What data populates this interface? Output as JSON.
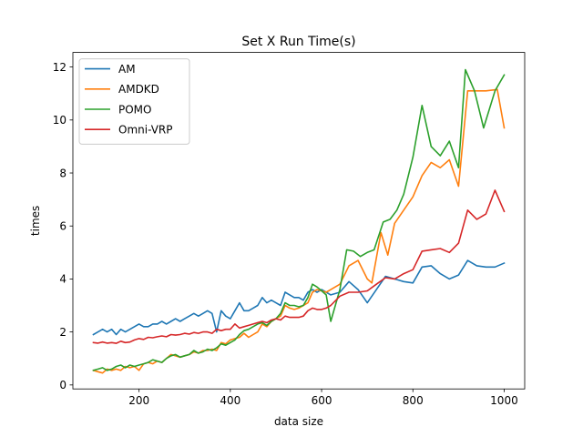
{
  "chart_data": {
    "type": "line",
    "title": "Set X Run Time(s)",
    "xlabel": "data size",
    "ylabel": "times",
    "xlim": [
      55,
      1045
    ],
    "ylim": [
      -0.15,
      12.55
    ],
    "xticks": [
      200,
      400,
      600,
      800,
      1000
    ],
    "yticks": [
      0,
      2,
      4,
      6,
      8,
      10,
      12
    ],
    "grid": false,
    "legend": "top-left",
    "series": [
      {
        "name": "AM",
        "color": "#1f77b4",
        "points": [
          [
            100,
            1.9
          ],
          [
            110,
            2.0
          ],
          [
            120,
            2.1
          ],
          [
            130,
            2.0
          ],
          [
            140,
            2.1
          ],
          [
            150,
            1.9
          ],
          [
            160,
            2.1
          ],
          [
            170,
            2.0
          ],
          [
            180,
            2.1
          ],
          [
            190,
            2.2
          ],
          [
            200,
            2.3
          ],
          [
            210,
            2.2
          ],
          [
            220,
            2.2
          ],
          [
            230,
            2.3
          ],
          [
            240,
            2.3
          ],
          [
            250,
            2.4
          ],
          [
            260,
            2.3
          ],
          [
            270,
            2.4
          ],
          [
            280,
            2.5
          ],
          [
            290,
            2.4
          ],
          [
            300,
            2.5
          ],
          [
            310,
            2.6
          ],
          [
            320,
            2.7
          ],
          [
            330,
            2.6
          ],
          [
            340,
            2.7
          ],
          [
            350,
            2.8
          ],
          [
            360,
            2.7
          ],
          [
            370,
            2.0
          ],
          [
            380,
            2.8
          ],
          [
            390,
            2.6
          ],
          [
            400,
            2.5
          ],
          [
            410,
            2.8
          ],
          [
            420,
            3.1
          ],
          [
            430,
            2.8
          ],
          [
            440,
            2.8
          ],
          [
            450,
            2.9
          ],
          [
            460,
            3.0
          ],
          [
            470,
            3.3
          ],
          [
            480,
            3.1
          ],
          [
            490,
            3.2
          ],
          [
            500,
            3.1
          ],
          [
            510,
            3.0
          ],
          [
            520,
            3.5
          ],
          [
            530,
            3.4
          ],
          [
            540,
            3.3
          ],
          [
            550,
            3.3
          ],
          [
            560,
            3.2
          ],
          [
            570,
            3.5
          ],
          [
            580,
            3.6
          ],
          [
            590,
            3.5
          ],
          [
            600,
            3.6
          ],
          [
            610,
            3.5
          ],
          [
            620,
            3.4
          ],
          [
            640,
            3.5
          ],
          [
            660,
            3.9
          ],
          [
            680,
            3.6
          ],
          [
            700,
            3.1
          ],
          [
            720,
            3.6
          ],
          [
            740,
            4.1
          ],
          [
            760,
            4.0
          ],
          [
            780,
            3.9
          ],
          [
            800,
            3.85
          ],
          [
            820,
            4.45
          ],
          [
            840,
            4.5
          ],
          [
            860,
            4.2
          ],
          [
            880,
            4.0
          ],
          [
            900,
            4.15
          ],
          [
            920,
            4.7
          ],
          [
            940,
            4.5
          ],
          [
            960,
            4.45
          ],
          [
            980,
            4.45
          ],
          [
            1000,
            4.6
          ]
        ]
      },
      {
        "name": "AMDKD",
        "color": "#ff7f0e",
        "points": [
          [
            100,
            0.55
          ],
          [
            110,
            0.5
          ],
          [
            120,
            0.45
          ],
          [
            130,
            0.6
          ],
          [
            140,
            0.55
          ],
          [
            150,
            0.6
          ],
          [
            160,
            0.55
          ],
          [
            170,
            0.7
          ],
          [
            180,
            0.65
          ],
          [
            190,
            0.7
          ],
          [
            200,
            0.55
          ],
          [
            210,
            0.8
          ],
          [
            220,
            0.85
          ],
          [
            230,
            0.8
          ],
          [
            240,
            0.9
          ],
          [
            250,
            0.85
          ],
          [
            260,
            1.0
          ],
          [
            270,
            1.15
          ],
          [
            280,
            1.1
          ],
          [
            290,
            1.05
          ],
          [
            300,
            1.1
          ],
          [
            310,
            1.15
          ],
          [
            320,
            1.25
          ],
          [
            330,
            1.2
          ],
          [
            340,
            1.3
          ],
          [
            350,
            1.3
          ],
          [
            360,
            1.35
          ],
          [
            370,
            1.3
          ],
          [
            380,
            1.6
          ],
          [
            390,
            1.55
          ],
          [
            400,
            1.7
          ],
          [
            410,
            1.75
          ],
          [
            420,
            1.8
          ],
          [
            430,
            1.95
          ],
          [
            440,
            1.8
          ],
          [
            450,
            1.9
          ],
          [
            460,
            2.0
          ],
          [
            470,
            2.3
          ],
          [
            480,
            2.2
          ],
          [
            490,
            2.4
          ],
          [
            500,
            2.5
          ],
          [
            510,
            2.6
          ],
          [
            520,
            3.0
          ],
          [
            530,
            2.9
          ],
          [
            540,
            2.85
          ],
          [
            550,
            2.9
          ],
          [
            560,
            3.0
          ],
          [
            570,
            3.1
          ],
          [
            580,
            3.5
          ],
          [
            590,
            3.6
          ],
          [
            600,
            3.55
          ],
          [
            610,
            3.5
          ],
          [
            620,
            3.6
          ],
          [
            640,
            3.8
          ],
          [
            660,
            4.5
          ],
          [
            680,
            4.7
          ],
          [
            700,
            4.0
          ],
          [
            710,
            3.85
          ],
          [
            730,
            5.75
          ],
          [
            745,
            4.9
          ],
          [
            760,
            6.1
          ],
          [
            780,
            6.6
          ],
          [
            800,
            7.1
          ],
          [
            820,
            7.9
          ],
          [
            840,
            8.4
          ],
          [
            860,
            8.2
          ],
          [
            880,
            8.5
          ],
          [
            900,
            7.5
          ],
          [
            920,
            11.1
          ],
          [
            940,
            11.1
          ],
          [
            960,
            11.1
          ],
          [
            985,
            11.15
          ],
          [
            1000,
            9.7
          ]
        ]
      },
      {
        "name": "POMO",
        "color": "#2ca02c",
        "points": [
          [
            100,
            0.55
          ],
          [
            110,
            0.6
          ],
          [
            120,
            0.65
          ],
          [
            130,
            0.55
          ],
          [
            140,
            0.6
          ],
          [
            150,
            0.7
          ],
          [
            160,
            0.75
          ],
          [
            170,
            0.65
          ],
          [
            180,
            0.75
          ],
          [
            190,
            0.7
          ],
          [
            200,
            0.75
          ],
          [
            210,
            0.8
          ],
          [
            220,
            0.85
          ],
          [
            230,
            0.95
          ],
          [
            240,
            0.9
          ],
          [
            250,
            0.85
          ],
          [
            260,
            1.0
          ],
          [
            270,
            1.1
          ],
          [
            280,
            1.15
          ],
          [
            290,
            1.05
          ],
          [
            300,
            1.1
          ],
          [
            310,
            1.15
          ],
          [
            320,
            1.3
          ],
          [
            330,
            1.2
          ],
          [
            340,
            1.25
          ],
          [
            350,
            1.35
          ],
          [
            360,
            1.3
          ],
          [
            370,
            1.4
          ],
          [
            380,
            1.55
          ],
          [
            390,
            1.5
          ],
          [
            400,
            1.6
          ],
          [
            410,
            1.7
          ],
          [
            420,
            1.9
          ],
          [
            430,
            2.05
          ],
          [
            440,
            2.1
          ],
          [
            450,
            2.2
          ],
          [
            460,
            2.3
          ],
          [
            470,
            2.35
          ],
          [
            480,
            2.25
          ],
          [
            490,
            2.4
          ],
          [
            500,
            2.5
          ],
          [
            510,
            2.7
          ],
          [
            520,
            3.1
          ],
          [
            530,
            3.0
          ],
          [
            540,
            3.0
          ],
          [
            550,
            2.95
          ],
          [
            560,
            3.0
          ],
          [
            570,
            3.3
          ],
          [
            580,
            3.8
          ],
          [
            590,
            3.7
          ],
          [
            600,
            3.55
          ],
          [
            610,
            3.4
          ],
          [
            620,
            2.4
          ],
          [
            640,
            3.6
          ],
          [
            655,
            5.1
          ],
          [
            670,
            5.05
          ],
          [
            685,
            4.85
          ],
          [
            700,
            5.0
          ],
          [
            715,
            5.1
          ],
          [
            735,
            6.15
          ],
          [
            750,
            6.25
          ],
          [
            765,
            6.6
          ],
          [
            780,
            7.2
          ],
          [
            800,
            8.6
          ],
          [
            820,
            10.55
          ],
          [
            840,
            9.0
          ],
          [
            860,
            8.65
          ],
          [
            880,
            9.2
          ],
          [
            900,
            8.2
          ],
          [
            915,
            11.9
          ],
          [
            935,
            11.1
          ],
          [
            955,
            9.7
          ],
          [
            980,
            11.1
          ],
          [
            1000,
            11.7
          ]
        ]
      },
      {
        "name": "Omni-VRP",
        "color": "#d62728",
        "points": [
          [
            100,
            1.6
          ],
          [
            110,
            1.58
          ],
          [
            120,
            1.62
          ],
          [
            130,
            1.58
          ],
          [
            140,
            1.6
          ],
          [
            150,
            1.57
          ],
          [
            160,
            1.65
          ],
          [
            170,
            1.6
          ],
          [
            180,
            1.62
          ],
          [
            190,
            1.7
          ],
          [
            200,
            1.75
          ],
          [
            210,
            1.72
          ],
          [
            220,
            1.8
          ],
          [
            230,
            1.78
          ],
          [
            240,
            1.82
          ],
          [
            250,
            1.85
          ],
          [
            260,
            1.82
          ],
          [
            270,
            1.9
          ],
          [
            280,
            1.88
          ],
          [
            290,
            1.9
          ],
          [
            300,
            1.95
          ],
          [
            310,
            1.92
          ],
          [
            320,
            1.98
          ],
          [
            330,
            1.95
          ],
          [
            340,
            2.0
          ],
          [
            350,
            2.0
          ],
          [
            360,
            1.95
          ],
          [
            370,
            2.1
          ],
          [
            380,
            2.05
          ],
          [
            390,
            2.1
          ],
          [
            400,
            2.1
          ],
          [
            410,
            2.3
          ],
          [
            420,
            2.15
          ],
          [
            430,
            2.2
          ],
          [
            440,
            2.25
          ],
          [
            450,
            2.3
          ],
          [
            460,
            2.35
          ],
          [
            470,
            2.4
          ],
          [
            480,
            2.35
          ],
          [
            490,
            2.45
          ],
          [
            500,
            2.5
          ],
          [
            510,
            2.45
          ],
          [
            520,
            2.6
          ],
          [
            530,
            2.55
          ],
          [
            540,
            2.55
          ],
          [
            550,
            2.55
          ],
          [
            560,
            2.6
          ],
          [
            570,
            2.8
          ],
          [
            580,
            2.9
          ],
          [
            590,
            2.85
          ],
          [
            600,
            2.85
          ],
          [
            610,
            2.9
          ],
          [
            620,
            3.0
          ],
          [
            640,
            3.35
          ],
          [
            660,
            3.5
          ],
          [
            680,
            3.5
          ],
          [
            700,
            3.55
          ],
          [
            720,
            3.8
          ],
          [
            740,
            4.05
          ],
          [
            760,
            4.0
          ],
          [
            780,
            4.2
          ],
          [
            800,
            4.35
          ],
          [
            820,
            5.05
          ],
          [
            840,
            5.1
          ],
          [
            860,
            5.15
          ],
          [
            880,
            5.0
          ],
          [
            900,
            5.35
          ],
          [
            920,
            6.6
          ],
          [
            940,
            6.25
          ],
          [
            960,
            6.45
          ],
          [
            980,
            7.35
          ],
          [
            1000,
            6.55
          ]
        ]
      }
    ]
  }
}
